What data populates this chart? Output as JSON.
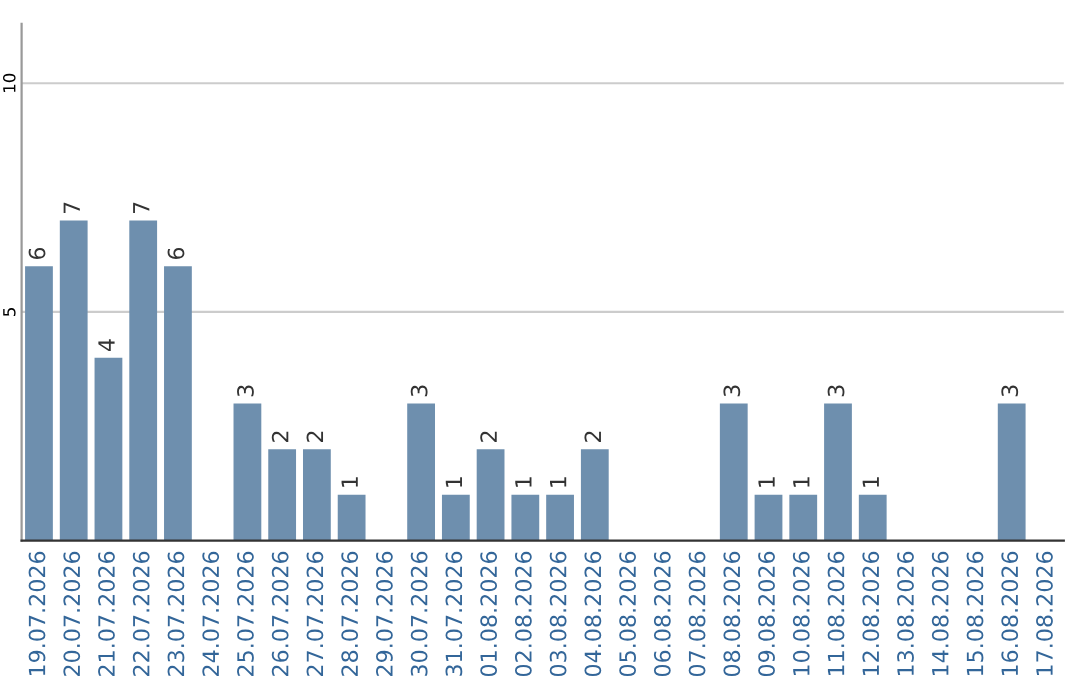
{
  "chart_data": {
    "type": "bar",
    "categories": [
      "19.07.2026",
      "20.07.2026",
      "21.07.2026",
      "22.07.2026",
      "23.07.2026",
      "24.07.2026",
      "25.07.2026",
      "26.07.2026",
      "27.07.2026",
      "28.07.2026",
      "29.07.2026",
      "30.07.2026",
      "31.07.2026",
      "01.08.2026",
      "02.08.2026",
      "03.08.2026",
      "04.08.2026",
      "05.08.2026",
      "06.08.2026",
      "07.08.2026",
      "08.08.2026",
      "09.08.2026",
      "10.08.2026",
      "11.08.2026",
      "12.08.2026",
      "13.08.2026",
      "14.08.2026",
      "15.08.2026",
      "16.08.2026",
      "17.08.2026"
    ],
    "values": [
      6,
      7,
      4,
      7,
      6,
      0,
      3,
      2,
      2,
      1,
      0,
      3,
      1,
      2,
      1,
      1,
      2,
      0,
      0,
      0,
      3,
      1,
      1,
      3,
      1,
      0,
      0,
      0,
      3,
      0
    ],
    "value_labels": [
      "6",
      "7",
      "4",
      "7",
      "6",
      null,
      "3",
      "2",
      "2",
      "1",
      null,
      "3",
      "1",
      "2",
      "1",
      "1",
      "2",
      null,
      null,
      null,
      "3",
      "1",
      "1",
      "3",
      "1",
      null,
      null,
      null,
      "3",
      null
    ],
    "color": "#6e8fae",
    "ylim": [
      0,
      11.3
    ],
    "yticks": [
      5,
      10
    ],
    "grid": "y"
  }
}
